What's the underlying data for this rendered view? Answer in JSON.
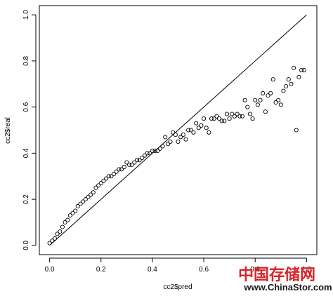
{
  "chart_data": {
    "type": "scatter",
    "xlabel": "cc2$pred",
    "ylabel": "cc2$real",
    "xlim": [
      -0.04,
      1.04
    ],
    "ylim": [
      -0.04,
      1.04
    ],
    "xticks": [
      "0.0",
      "0.2",
      "0.4",
      "0.6",
      "0.8",
      "1.0"
    ],
    "yticks": [
      "0.0",
      "0.2",
      "0.4",
      "0.6",
      "0.8",
      "1.0"
    ],
    "reference_line": {
      "from": [
        0,
        0
      ],
      "to": [
        1,
        1
      ]
    },
    "marker": "open-circle",
    "points": [
      [
        0.0,
        0.01
      ],
      [
        0.01,
        0.02
      ],
      [
        0.02,
        0.03
      ],
      [
        0.03,
        0.05
      ],
      [
        0.04,
        0.06
      ],
      [
        0.05,
        0.08
      ],
      [
        0.06,
        0.1
      ],
      [
        0.07,
        0.11
      ],
      [
        0.08,
        0.13
      ],
      [
        0.09,
        0.14
      ],
      [
        0.1,
        0.15
      ],
      [
        0.11,
        0.17
      ],
      [
        0.12,
        0.18
      ],
      [
        0.13,
        0.19
      ],
      [
        0.14,
        0.2
      ],
      [
        0.15,
        0.21
      ],
      [
        0.16,
        0.22
      ],
      [
        0.17,
        0.23
      ],
      [
        0.18,
        0.25
      ],
      [
        0.19,
        0.26
      ],
      [
        0.2,
        0.27
      ],
      [
        0.21,
        0.28
      ],
      [
        0.22,
        0.29
      ],
      [
        0.23,
        0.3
      ],
      [
        0.24,
        0.3
      ],
      [
        0.25,
        0.31
      ],
      [
        0.26,
        0.32
      ],
      [
        0.27,
        0.33
      ],
      [
        0.28,
        0.33
      ],
      [
        0.29,
        0.34
      ],
      [
        0.3,
        0.36
      ],
      [
        0.31,
        0.35
      ],
      [
        0.32,
        0.35
      ],
      [
        0.33,
        0.36
      ],
      [
        0.34,
        0.37
      ],
      [
        0.35,
        0.37
      ],
      [
        0.36,
        0.38
      ],
      [
        0.37,
        0.39
      ],
      [
        0.38,
        0.4
      ],
      [
        0.39,
        0.4
      ],
      [
        0.4,
        0.41
      ],
      [
        0.41,
        0.41
      ],
      [
        0.42,
        0.41
      ],
      [
        0.43,
        0.42
      ],
      [
        0.44,
        0.43
      ],
      [
        0.45,
        0.47
      ],
      [
        0.46,
        0.44
      ],
      [
        0.47,
        0.45
      ],
      [
        0.48,
        0.49
      ],
      [
        0.49,
        0.48
      ],
      [
        0.5,
        0.45
      ],
      [
        0.51,
        0.47
      ],
      [
        0.52,
        0.48
      ],
      [
        0.53,
        0.46
      ],
      [
        0.54,
        0.5
      ],
      [
        0.55,
        0.5
      ],
      [
        0.56,
        0.49
      ],
      [
        0.57,
        0.53
      ],
      [
        0.58,
        0.51
      ],
      [
        0.59,
        0.52
      ],
      [
        0.6,
        0.55
      ],
      [
        0.61,
        0.51
      ],
      [
        0.62,
        0.49
      ],
      [
        0.63,
        0.55
      ],
      [
        0.64,
        0.55
      ],
      [
        0.65,
        0.56
      ],
      [
        0.66,
        0.55
      ],
      [
        0.67,
        0.54
      ],
      [
        0.68,
        0.54
      ],
      [
        0.69,
        0.57
      ],
      [
        0.7,
        0.55
      ],
      [
        0.71,
        0.57
      ],
      [
        0.72,
        0.56
      ],
      [
        0.73,
        0.57
      ],
      [
        0.74,
        0.56
      ],
      [
        0.75,
        0.56
      ],
      [
        0.76,
        0.63
      ],
      [
        0.77,
        0.6
      ],
      [
        0.78,
        0.57
      ],
      [
        0.79,
        0.55
      ],
      [
        0.8,
        0.63
      ],
      [
        0.81,
        0.61
      ],
      [
        0.82,
        0.63
      ],
      [
        0.83,
        0.66
      ],
      [
        0.84,
        0.58
      ],
      [
        0.85,
        0.65
      ],
      [
        0.86,
        0.66
      ],
      [
        0.87,
        0.72
      ],
      [
        0.88,
        0.62
      ],
      [
        0.89,
        0.63
      ],
      [
        0.9,
        0.61
      ],
      [
        0.91,
        0.67
      ],
      [
        0.92,
        0.69
      ],
      [
        0.93,
        0.72
      ],
      [
        0.94,
        0.7
      ],
      [
        0.95,
        0.77
      ],
      [
        0.96,
        0.5
      ],
      [
        0.97,
        0.73
      ],
      [
        0.98,
        0.76
      ],
      [
        0.99,
        0.76
      ]
    ]
  },
  "watermark": {
    "brand_cn": "中国存储网",
    "url": "www.ChinaStor.com",
    "brand_color": "#d9252b",
    "url_color": "#1a1a1a"
  }
}
